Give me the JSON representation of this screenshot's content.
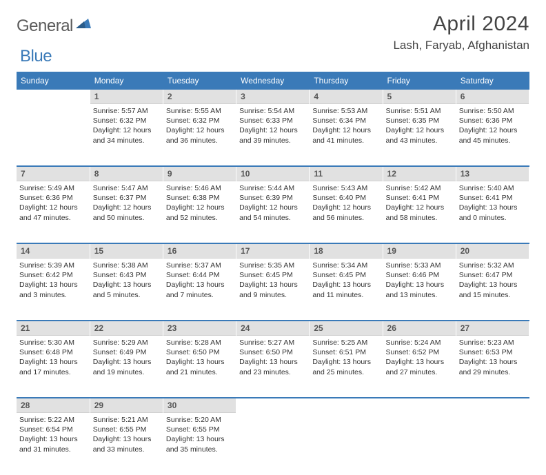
{
  "logo": {
    "text_a": "General",
    "text_b": "Blue",
    "tri_color": "#3a7ab8"
  },
  "header": {
    "month_title": "April 2024",
    "location": "Lash, Faryab, Afghanistan"
  },
  "colors": {
    "header_bg": "#3a7ab8",
    "daynum_bg": "#e1e1e1",
    "divider": "#3a7ab8",
    "text": "#333333",
    "title": "#444444"
  },
  "day_names": [
    "Sunday",
    "Monday",
    "Tuesday",
    "Wednesday",
    "Thursday",
    "Friday",
    "Saturday"
  ],
  "weeks": [
    [
      null,
      {
        "n": "1",
        "sr": "5:57 AM",
        "ss": "6:32 PM",
        "dl": "12 hours and 34 minutes."
      },
      {
        "n": "2",
        "sr": "5:55 AM",
        "ss": "6:32 PM",
        "dl": "12 hours and 36 minutes."
      },
      {
        "n": "3",
        "sr": "5:54 AM",
        "ss": "6:33 PM",
        "dl": "12 hours and 39 minutes."
      },
      {
        "n": "4",
        "sr": "5:53 AM",
        "ss": "6:34 PM",
        "dl": "12 hours and 41 minutes."
      },
      {
        "n": "5",
        "sr": "5:51 AM",
        "ss": "6:35 PM",
        "dl": "12 hours and 43 minutes."
      },
      {
        "n": "6",
        "sr": "5:50 AM",
        "ss": "6:36 PM",
        "dl": "12 hours and 45 minutes."
      }
    ],
    [
      {
        "n": "7",
        "sr": "5:49 AM",
        "ss": "6:36 PM",
        "dl": "12 hours and 47 minutes."
      },
      {
        "n": "8",
        "sr": "5:47 AM",
        "ss": "6:37 PM",
        "dl": "12 hours and 50 minutes."
      },
      {
        "n": "9",
        "sr": "5:46 AM",
        "ss": "6:38 PM",
        "dl": "12 hours and 52 minutes."
      },
      {
        "n": "10",
        "sr": "5:44 AM",
        "ss": "6:39 PM",
        "dl": "12 hours and 54 minutes."
      },
      {
        "n": "11",
        "sr": "5:43 AM",
        "ss": "6:40 PM",
        "dl": "12 hours and 56 minutes."
      },
      {
        "n": "12",
        "sr": "5:42 AM",
        "ss": "6:41 PM",
        "dl": "12 hours and 58 minutes."
      },
      {
        "n": "13",
        "sr": "5:40 AM",
        "ss": "6:41 PM",
        "dl": "13 hours and 0 minutes."
      }
    ],
    [
      {
        "n": "14",
        "sr": "5:39 AM",
        "ss": "6:42 PM",
        "dl": "13 hours and 3 minutes."
      },
      {
        "n": "15",
        "sr": "5:38 AM",
        "ss": "6:43 PM",
        "dl": "13 hours and 5 minutes."
      },
      {
        "n": "16",
        "sr": "5:37 AM",
        "ss": "6:44 PM",
        "dl": "13 hours and 7 minutes."
      },
      {
        "n": "17",
        "sr": "5:35 AM",
        "ss": "6:45 PM",
        "dl": "13 hours and 9 minutes."
      },
      {
        "n": "18",
        "sr": "5:34 AM",
        "ss": "6:45 PM",
        "dl": "13 hours and 11 minutes."
      },
      {
        "n": "19",
        "sr": "5:33 AM",
        "ss": "6:46 PM",
        "dl": "13 hours and 13 minutes."
      },
      {
        "n": "20",
        "sr": "5:32 AM",
        "ss": "6:47 PM",
        "dl": "13 hours and 15 minutes."
      }
    ],
    [
      {
        "n": "21",
        "sr": "5:30 AM",
        "ss": "6:48 PM",
        "dl": "13 hours and 17 minutes."
      },
      {
        "n": "22",
        "sr": "5:29 AM",
        "ss": "6:49 PM",
        "dl": "13 hours and 19 minutes."
      },
      {
        "n": "23",
        "sr": "5:28 AM",
        "ss": "6:50 PM",
        "dl": "13 hours and 21 minutes."
      },
      {
        "n": "24",
        "sr": "5:27 AM",
        "ss": "6:50 PM",
        "dl": "13 hours and 23 minutes."
      },
      {
        "n": "25",
        "sr": "5:25 AM",
        "ss": "6:51 PM",
        "dl": "13 hours and 25 minutes."
      },
      {
        "n": "26",
        "sr": "5:24 AM",
        "ss": "6:52 PM",
        "dl": "13 hours and 27 minutes."
      },
      {
        "n": "27",
        "sr": "5:23 AM",
        "ss": "6:53 PM",
        "dl": "13 hours and 29 minutes."
      }
    ],
    [
      {
        "n": "28",
        "sr": "5:22 AM",
        "ss": "6:54 PM",
        "dl": "13 hours and 31 minutes."
      },
      {
        "n": "29",
        "sr": "5:21 AM",
        "ss": "6:55 PM",
        "dl": "13 hours and 33 minutes."
      },
      {
        "n": "30",
        "sr": "5:20 AM",
        "ss": "6:55 PM",
        "dl": "13 hours and 35 minutes."
      },
      null,
      null,
      null,
      null
    ]
  ],
  "labels": {
    "sunrise": "Sunrise:",
    "sunset": "Sunset:",
    "daylight": "Daylight:"
  }
}
